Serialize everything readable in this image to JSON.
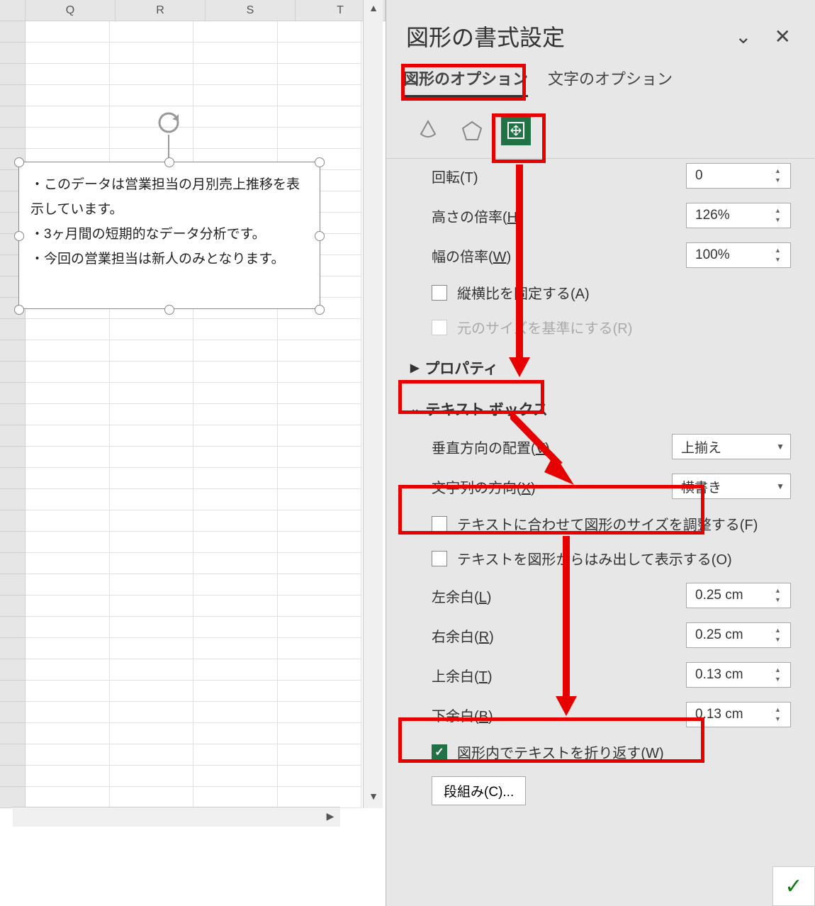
{
  "sheet": {
    "columns": [
      "Q",
      "R",
      "S",
      "T"
    ],
    "textbox_lines": [
      "・このデータは営業担当の月別売上推移を表示しています。",
      "・3ヶ月間の短期的なデータ分析です。",
      "・今回の営業担当は新人のみとなります。"
    ]
  },
  "panel": {
    "title": "図形の書式設定",
    "tabs": {
      "shape_options": "図形のオプション",
      "text_options": "文字のオプション"
    },
    "size": {
      "rotation_label": "回転(T)",
      "rotation_value": "0",
      "height_scale_label": "高さの倍率(",
      "height_scale_acc": "H",
      "height_scale_value": "126%",
      "width_scale_label": "幅の倍率(",
      "width_scale_acc": "W",
      "width_scale_value": "100%",
      "lock_aspect_label": "縦横比を固定する(",
      "lock_aspect_acc": "A",
      "original_size_label": "元のサイズを基準にする(",
      "original_size_acc": "R"
    },
    "properties_label": "プロパティ",
    "textbox_section": {
      "header": "テキスト ボックス",
      "valign_label": "垂直方向の配置(",
      "valign_acc": "V",
      "valign_value": "上揃え",
      "textdir_label": "文字列の方向(",
      "textdir_acc": "X",
      "textdir_value": "横書き",
      "autofit_label": "テキストに合わせて図形のサイズを調整する(",
      "autofit_acc": "F",
      "overflow_label": "テキストを図形からはみ出して表示する(",
      "overflow_acc": "O",
      "margin_left_label": "左余白(",
      "margin_left_acc": "L",
      "margin_left_value": "0.25 cm",
      "margin_right_label": "右余白(",
      "margin_right_acc": "R",
      "margin_right_value": "0.25 cm",
      "margin_top_label": "上余白(",
      "margin_top_acc": "T",
      "margin_top_value": "0.13 cm",
      "margin_bottom_label": "下余白(",
      "margin_bottom_acc": "B",
      "margin_bottom_value": "0.13 cm",
      "wrap_label": "図形内でテキストを折り返す(",
      "wrap_acc": "W",
      "columns_label": "段組み(",
      "columns_acc": "C",
      "columns_suffix": ")..."
    }
  },
  "annotations": {
    "highlight_color": "#e60000",
    "active_icon_bg": "#217346"
  }
}
